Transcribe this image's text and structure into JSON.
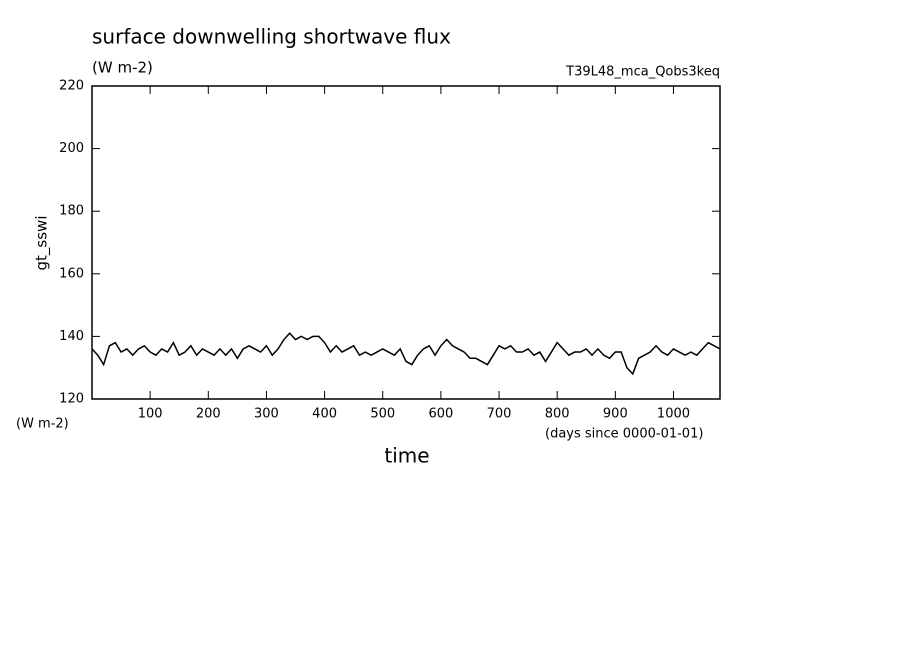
{
  "chart_data": {
    "type": "line",
    "title": "surface downwelling shortwave flux",
    "subtitle": "(W m-2)",
    "annotation": "T39L48_mca_Qobs3keq",
    "y_label": "gt_sswi",
    "y_unit": "(W m-2)",
    "x_label": "time",
    "x_unit": "(days since 0000-01-01)",
    "x": [
      0,
      10,
      20,
      30,
      40,
      50,
      60,
      70,
      80,
      90,
      100,
      110,
      120,
      130,
      140,
      150,
      160,
      170,
      180,
      190,
      200,
      210,
      220,
      230,
      240,
      250,
      260,
      270,
      280,
      290,
      300,
      310,
      320,
      330,
      340,
      350,
      360,
      370,
      380,
      390,
      400,
      410,
      420,
      430,
      440,
      450,
      460,
      470,
      480,
      490,
      500,
      510,
      520,
      530,
      540,
      550,
      560,
      570,
      580,
      590,
      600,
      610,
      620,
      630,
      640,
      650,
      660,
      670,
      680,
      690,
      700,
      710,
      720,
      730,
      740,
      750,
      760,
      770,
      780,
      790,
      800,
      810,
      820,
      830,
      840,
      850,
      860,
      870,
      880,
      890,
      900,
      910,
      920,
      930,
      940,
      950,
      960,
      970,
      980,
      990,
      1000,
      1010,
      1020,
      1030,
      1040,
      1050,
      1060,
      1070,
      1080
    ],
    "series": [
      {
        "name": "gt_sswi",
        "color": "#000000",
        "values": [
          136,
          134,
          131,
          137,
          138,
          135,
          136,
          134,
          136,
          137,
          135,
          134,
          136,
          135,
          138,
          134,
          135,
          137,
          134,
          136,
          135,
          134,
          136,
          134,
          136,
          133,
          136,
          137,
          136,
          135,
          137,
          134,
          136,
          139,
          141,
          139,
          140,
          139,
          140,
          140,
          138,
          135,
          137,
          135,
          136,
          137,
          134,
          135,
          134,
          135,
          136,
          135,
          134,
          136,
          132,
          131,
          134,
          136,
          137,
          134,
          137,
          139,
          137,
          136,
          135,
          133,
          133,
          132,
          131,
          134,
          137,
          136,
          137,
          135,
          135,
          136,
          134,
          135,
          132,
          135,
          138,
          136,
          134,
          135,
          135,
          136,
          134,
          136,
          134,
          133,
          135,
          135,
          130,
          128,
          133,
          134,
          135,
          137,
          135,
          134,
          136,
          135,
          134,
          135,
          134,
          136,
          138,
          137,
          136
        ]
      }
    ],
    "xlim": [
      0,
      1080
    ],
    "ylim": [
      120,
      220
    ],
    "xticks": [
      100,
      200,
      300,
      400,
      500,
      600,
      700,
      800,
      900,
      1000
    ],
    "yticks": [
      120,
      140,
      160,
      180,
      200,
      220
    ]
  }
}
